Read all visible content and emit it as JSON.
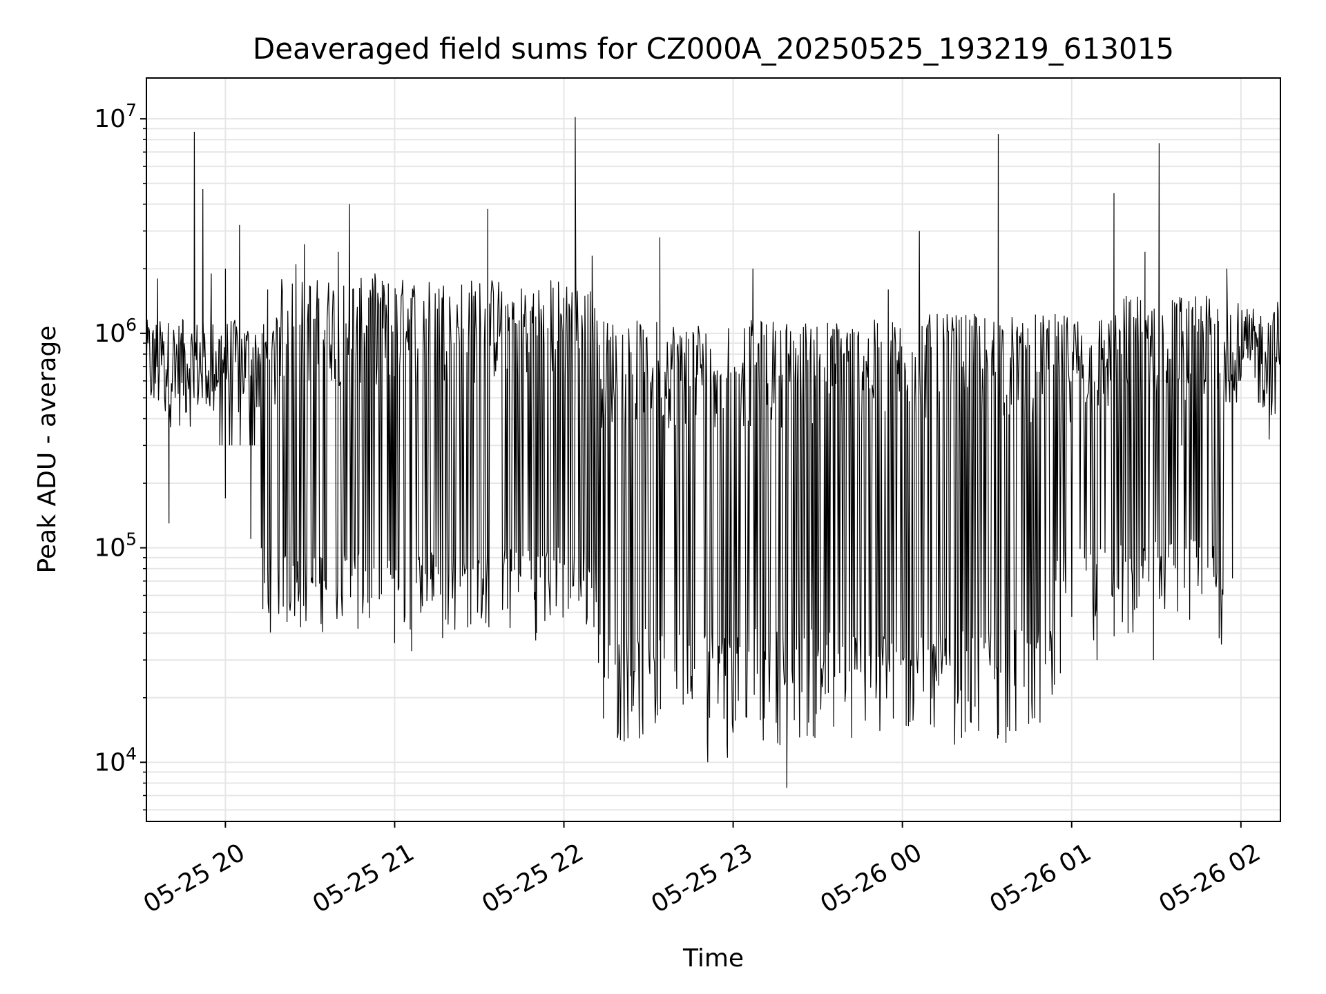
{
  "chart_data": {
    "type": "line",
    "title": "Deaveraged field sums for CZ000A_20250525_193219_613015",
    "xlabel": "Time",
    "ylabel": "Peak ADU - average",
    "yscale": "log",
    "ylim": [
      5300,
      15500000
    ],
    "xlim": [
      "2025-05-25 19:32",
      "2025-05-26 02:14"
    ],
    "grid": true,
    "line_color": "#000000",
    "x_ticks": [
      {
        "label": "05-25 20",
        "value": "2025-05-25 20:00"
      },
      {
        "label": "05-25 21",
        "value": "2025-05-25 21:00"
      },
      {
        "label": "05-25 22",
        "value": "2025-05-25 22:00"
      },
      {
        "label": "05-25 23",
        "value": "2025-05-25 23:00"
      },
      {
        "label": "05-26 00",
        "value": "2025-05-26 00:00"
      },
      {
        "label": "05-26 01",
        "value": "2025-05-26 01:00"
      },
      {
        "label": "05-26 02",
        "value": "2025-05-26 02:00"
      }
    ],
    "y_ticks": [
      {
        "base": "10",
        "exp": "4",
        "value": 10000
      },
      {
        "base": "10",
        "exp": "5",
        "value": 100000
      },
      {
        "base": "10",
        "exp": "6",
        "value": 1000000
      },
      {
        "base": "10",
        "exp": "7",
        "value": 10000000
      }
    ],
    "series": [
      {
        "values": [
          [
            "2025-05-25 19:32",
            650000
          ],
          [
            "2025-05-25 19:36",
            1800000
          ],
          [
            "2025-05-25 19:40",
            130000
          ],
          [
            "2025-05-25 19:45",
            1150000
          ],
          [
            "2025-05-25 19:49",
            8700000
          ],
          [
            "2025-05-25 19:50",
            700000
          ],
          [
            "2025-05-25 19:52",
            4700000
          ],
          [
            "2025-05-25 19:55",
            1900000
          ],
          [
            "2025-05-25 19:58",
            300000
          ],
          [
            "2025-05-25 20:00",
            170000
          ],
          [
            "2025-05-25 20:00",
            2000000
          ],
          [
            "2025-05-25 20:05",
            3200000
          ],
          [
            "2025-05-25 20:09",
            110000
          ],
          [
            "2025-05-25 20:15",
            1600000
          ],
          [
            "2025-05-25 20:15",
            80000
          ],
          [
            "2025-05-25 20:19",
            62000
          ],
          [
            "2025-05-25 20:25",
            2100000
          ],
          [
            "2025-05-25 20:28",
            2600000
          ],
          [
            "2025-05-25 20:35",
            70000
          ],
          [
            "2025-05-25 20:40",
            2400000
          ],
          [
            "2025-05-25 20:44",
            4000000
          ],
          [
            "2025-05-25 20:47",
            42000
          ],
          [
            "2025-05-25 20:53",
            1900000
          ],
          [
            "2025-05-25 21:00",
            36000
          ],
          [
            "2025-05-25 21:06",
            33000
          ],
          [
            "2025-05-25 21:17",
            38000
          ],
          [
            "2025-05-25 21:27",
            44000
          ],
          [
            "2025-05-25 21:33",
            3800000
          ],
          [
            "2025-05-25 21:40",
            52000
          ],
          [
            "2025-05-25 21:50",
            37000
          ],
          [
            "2025-05-25 21:58",
            100000
          ],
          [
            "2025-05-25 22:04",
            10200000
          ],
          [
            "2025-05-25 22:07",
            70000
          ],
          [
            "2025-05-25 22:10",
            2300000
          ],
          [
            "2025-05-25 22:14",
            16000
          ],
          [
            "2025-05-25 22:19",
            13000
          ],
          [
            "2025-05-25 22:28",
            13500
          ],
          [
            "2025-05-25 22:34",
            2800000
          ],
          [
            "2025-05-25 22:40",
            22000
          ],
          [
            "2025-05-25 22:51",
            10000
          ],
          [
            "2025-05-25 22:58",
            10500
          ],
          [
            "2025-05-25 23:07",
            2000000
          ],
          [
            "2025-05-25 23:11",
            16000
          ],
          [
            "2025-05-25 23:19",
            7600
          ],
          [
            "2025-05-25 23:29",
            13000
          ],
          [
            "2025-05-25 23:36",
            25000
          ],
          [
            "2025-05-25 23:42",
            13000
          ],
          [
            "2025-05-25 23:52",
            14000
          ],
          [
            "2025-05-25 23:55",
            1600000
          ],
          [
            "2025-05-26 00:06",
            3000000
          ],
          [
            "2025-05-26 00:10",
            15000
          ],
          [
            "2025-05-26 00:21",
            13000
          ],
          [
            "2025-05-26 00:27",
            14000
          ],
          [
            "2025-05-26 00:34",
            8500000
          ],
          [
            "2025-05-26 00:38",
            14000
          ],
          [
            "2025-05-26 00:46",
            16000
          ],
          [
            "2025-05-26 00:56",
            26000
          ],
          [
            "2025-05-26 01:09",
            30000
          ],
          [
            "2025-05-26 01:15",
            4500000
          ],
          [
            "2025-05-26 01:20",
            40000
          ],
          [
            "2025-05-26 01:26",
            2400000
          ],
          [
            "2025-05-26 01:29",
            30000
          ],
          [
            "2025-05-26 01:31",
            7700000
          ],
          [
            "2025-05-26 01:39",
            300000
          ],
          [
            "2025-05-26 01:45",
            85000
          ],
          [
            "2025-05-26 01:52",
            550000
          ],
          [
            "2025-05-26 01:55",
            2000000
          ],
          [
            "2025-05-26 01:57",
            72000
          ],
          [
            "2025-05-26 02:01",
            850000
          ],
          [
            "2025-05-26 02:05",
            620000
          ],
          [
            "2025-05-26 02:10",
            320000
          ],
          [
            "2025-05-26 02:13",
            1400000
          ],
          [
            "2025-05-26 02:14",
            1100000
          ]
        ]
      }
    ]
  }
}
